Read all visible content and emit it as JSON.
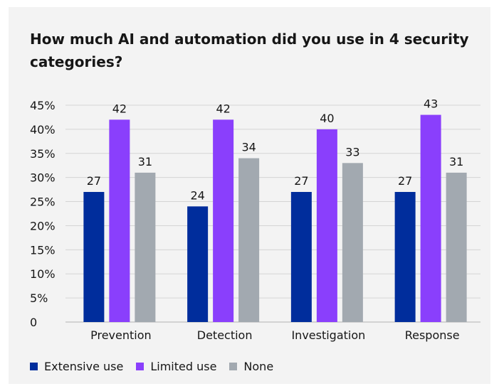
{
  "chart_data": {
    "type": "bar",
    "title": "How much AI and automation did you use in 4 security categories?",
    "categories": [
      "Prevention",
      "Detection",
      "Investigation",
      "Response"
    ],
    "series": [
      {
        "name": "Extensive use",
        "color": "#002d9c",
        "values": [
          27,
          24,
          27,
          27
        ]
      },
      {
        "name": "Limited use",
        "color": "#8a3ffc",
        "values": [
          42,
          42,
          40,
          43
        ]
      },
      {
        "name": "None",
        "color": "#a2a9b0",
        "values": [
          31,
          34,
          33,
          31
        ]
      }
    ],
    "ylim": [
      0,
      45
    ],
    "yticks": [
      0,
      5,
      10,
      15,
      20,
      25,
      30,
      35,
      40,
      45
    ],
    "ytick_labels": [
      "0",
      "5%",
      "10%",
      "15%",
      "20%",
      "25%",
      "30%",
      "35%",
      "40%",
      "45%"
    ],
    "grid": true,
    "legend": "bottom-left"
  }
}
